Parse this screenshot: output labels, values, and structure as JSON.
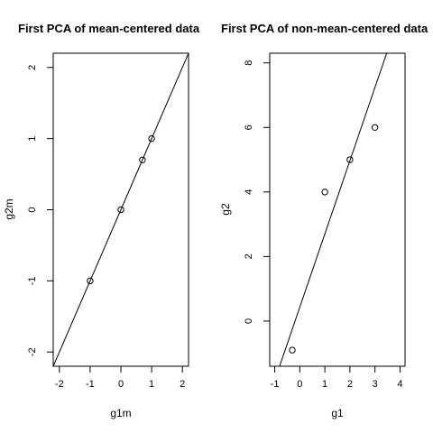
{
  "chart_data": [
    {
      "type": "scatter",
      "title": "First PCA of mean-centered data",
      "xlabel": "g1m",
      "ylabel": "g2m",
      "xlim": [
        -2.2,
        2.2
      ],
      "ylim": [
        -2.2,
        2.2
      ],
      "xticks": [
        -2,
        -1,
        0,
        1,
        2
      ],
      "yticks": [
        -2,
        -1,
        0,
        1,
        2
      ],
      "points": [
        {
          "x": -1.0,
          "y": -1.0
        },
        {
          "x": 0.0,
          "y": 0.0
        },
        {
          "x": 0.7,
          "y": 0.7
        },
        {
          "x": 1.0,
          "y": 1.0
        }
      ],
      "line": {
        "intercept": 0.0,
        "slope": 1.0
      },
      "grid": false
    },
    {
      "type": "scatter",
      "title": "First PCA of non-mean-centered data",
      "xlabel": "g1",
      "ylabel": "g2",
      "xlim": [
        -1.2,
        4.2
      ],
      "ylim": [
        -1.4,
        8.3
      ],
      "xticks": [
        -1,
        0,
        1,
        2,
        3,
        4
      ],
      "yticks": [
        0,
        2,
        4,
        6,
        8
      ],
      "points": [
        {
          "x": -0.3,
          "y": -0.9
        },
        {
          "x": 1.0,
          "y": 4.0
        },
        {
          "x": 2.0,
          "y": 5.0
        },
        {
          "x": 3.0,
          "y": 6.0
        }
      ],
      "line": {
        "intercept": 0.43,
        "slope": 2.27
      },
      "grid": false
    }
  ]
}
